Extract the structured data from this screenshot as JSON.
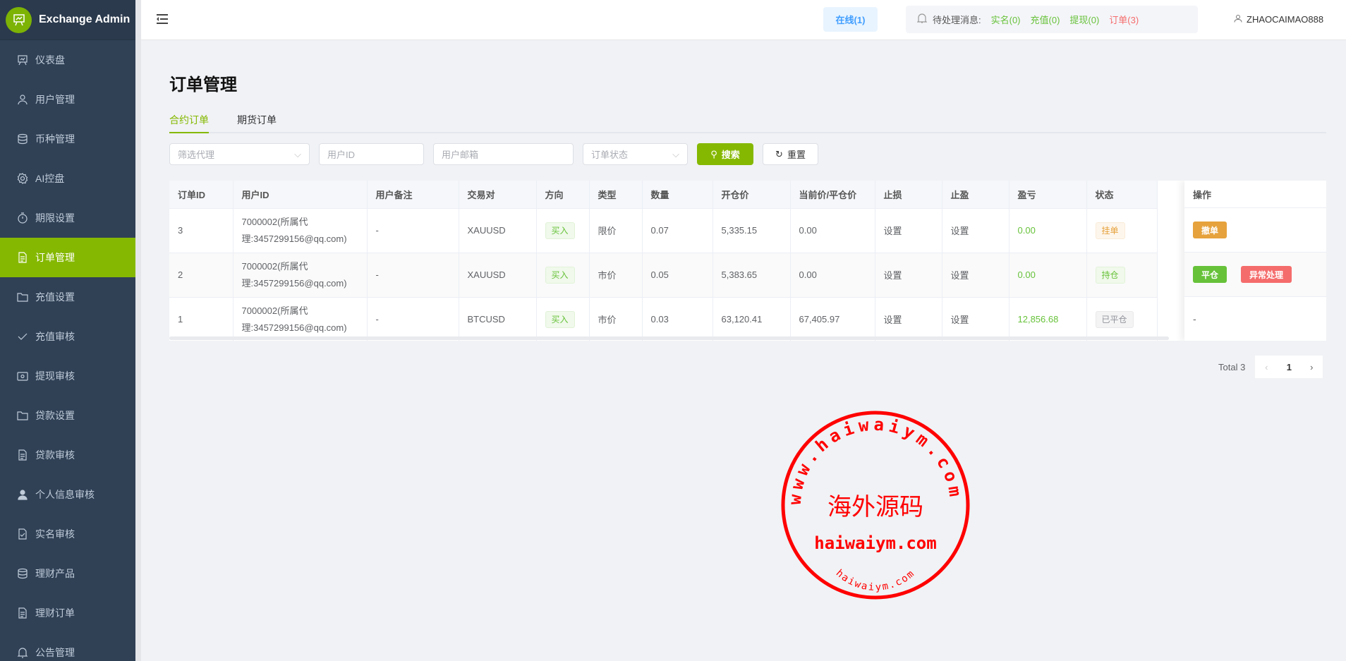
{
  "app": {
    "title": "Exchange Admin"
  },
  "sidebar": {
    "items": [
      {
        "label": "仪表盘",
        "icon": "presentation-chart-icon"
      },
      {
        "label": "用户管理",
        "icon": "user-icon"
      },
      {
        "label": "币种管理",
        "icon": "database-icon"
      },
      {
        "label": "AI控盘",
        "icon": "gear-icon"
      },
      {
        "label": "期限设置",
        "icon": "timer-icon"
      },
      {
        "label": "订单管理",
        "icon": "document-icon",
        "active": true
      },
      {
        "label": "充值设置",
        "icon": "folder-icon"
      },
      {
        "label": "充值审核",
        "icon": "check-icon"
      },
      {
        "label": "提现审核",
        "icon": "wallet-icon"
      },
      {
        "label": "贷款设置",
        "icon": "folder-icon"
      },
      {
        "label": "贷款审核",
        "icon": "document-icon"
      },
      {
        "label": "个人信息审核",
        "icon": "user-filled-icon"
      },
      {
        "label": "实名审核",
        "icon": "document-check-icon"
      },
      {
        "label": "理财产品",
        "icon": "database-icon"
      },
      {
        "label": "理财订单",
        "icon": "document-icon"
      },
      {
        "label": "公告管理",
        "icon": "bell-icon"
      }
    ]
  },
  "header": {
    "online": "在线(1)",
    "pending_label": "待处理消息:",
    "pending": [
      {
        "label": "实名(0)",
        "color": "#67c23a"
      },
      {
        "label": "充值(0)",
        "color": "#67c23a"
      },
      {
        "label": "提现(0)",
        "color": "#67c23a"
      },
      {
        "label": "订单(3)",
        "color": "#f56c6c"
      }
    ],
    "username": "ZHAOCAIMAO888"
  },
  "page": {
    "title": "订单管理",
    "tabs": [
      "合约订单",
      "期货订单"
    ],
    "active_tab": 0
  },
  "filters": {
    "agent_placeholder": "筛选代理",
    "user_id_placeholder": "用户ID",
    "email_placeholder": "用户邮箱",
    "status_placeholder": "订单状态",
    "search": "搜索",
    "reset": "重置"
  },
  "table": {
    "columns": [
      "订单ID",
      "用户ID",
      "用户备注",
      "交易对",
      "方向",
      "类型",
      "数量",
      "开仓价",
      "当前价/平仓价",
      "止损",
      "止盈",
      "盈亏",
      "状态",
      "操作"
    ],
    "rows": [
      {
        "id": "3",
        "user": "7000002(所属代理:3457299156@qq.com)",
        "note": "-",
        "pair": "XAUUSD",
        "dir": "买入",
        "type": "限价",
        "qty": "0.07",
        "open": "5,335.15",
        "cur": "0.00",
        "sl": "设置",
        "tp": "设置",
        "pnl": "0.00",
        "status": "挂单",
        "actions": [
          "撤单"
        ]
      },
      {
        "id": "2",
        "user": "7000002(所属代理:3457299156@qq.com)",
        "note": "-",
        "pair": "XAUUSD",
        "dir": "买入",
        "type": "市价",
        "qty": "0.05",
        "open": "5,383.65",
        "cur": "0.00",
        "sl": "设置",
        "tp": "设置",
        "pnl": "0.00",
        "status": "持仓",
        "actions": [
          "平仓",
          "异常处理"
        ]
      },
      {
        "id": "1",
        "user": "7000002(所属代理:3457299156@qq.com)",
        "note": "-",
        "pair": "BTCUSD",
        "dir": "买入",
        "type": "市价",
        "qty": "0.03",
        "open": "63,120.41",
        "cur": "67,405.97",
        "sl": "设置",
        "tp": "设置",
        "pnl": "12,856.68",
        "status": "已平仓",
        "actions": [
          "-"
        ]
      }
    ]
  },
  "pagination": {
    "total": "Total 3",
    "current": "1"
  },
  "watermark": {
    "text": "海外源码",
    "url": "haiwaiym.com",
    "ring_top": "www.haiwaiym.com"
  },
  "colors": {
    "accent": "#85b800",
    "sidebar": "#304156",
    "warning": "#e6a23c",
    "success": "#67c23a",
    "danger": "#f56c6c"
  }
}
